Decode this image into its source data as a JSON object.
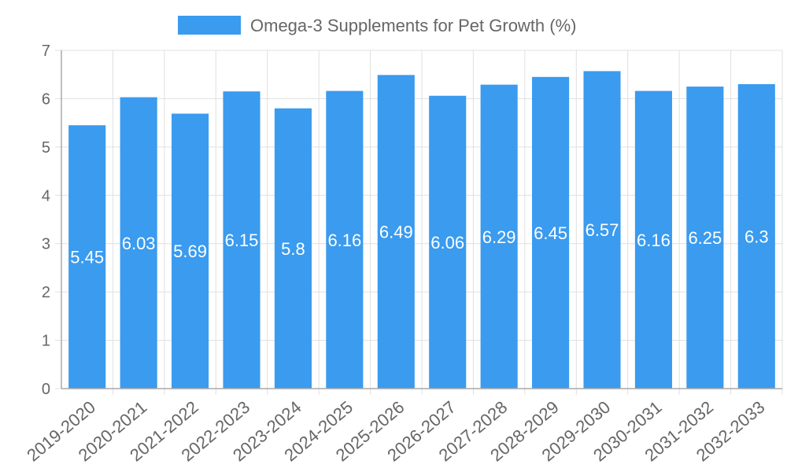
{
  "chart_data": {
    "type": "bar",
    "title": "",
    "xlabel": "",
    "ylabel": "",
    "legend_position": "top-center",
    "grid": true,
    "ylim": [
      0,
      7
    ],
    "yticks": [
      "0",
      "1",
      "2",
      "3",
      "4",
      "5",
      "6",
      "7"
    ],
    "categories": [
      "2019-2020",
      "2020-2021",
      "2021-2022",
      "2022-2023",
      "2023-2024",
      "2024-2025",
      "2025-2026",
      "2026-2027",
      "2027-2028",
      "2028-2029",
      "2029-2030",
      "2030-2031",
      "2031-2032",
      "2032-2033"
    ],
    "series": [
      {
        "name": "Omega-3 Supplements for Pet Growth (%)",
        "color": "#3a9bef",
        "values": [
          5.45,
          6.03,
          5.69,
          6.15,
          5.8,
          6.16,
          6.49,
          6.06,
          6.29,
          6.45,
          6.57,
          6.16,
          6.25,
          6.3
        ],
        "data_labels": [
          "5.45",
          "6.03",
          "5.69",
          "6.15",
          "5.8",
          "6.16",
          "6.49",
          "6.06",
          "6.29",
          "6.45",
          "6.57",
          "6.16",
          "6.25",
          "6.3"
        ]
      }
    ]
  }
}
